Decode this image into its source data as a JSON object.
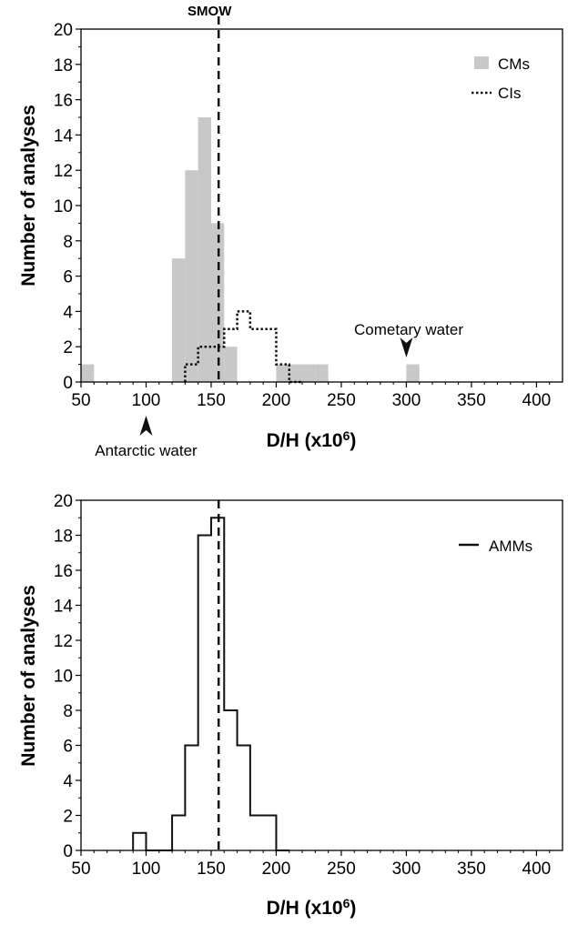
{
  "chart_data": [
    {
      "type": "bar",
      "ylabel": "Number of analyses",
      "xlabel_main": "D/H (x10",
      "xlabel_sup": "6",
      "xlabel_tail": ")",
      "xlim": [
        50,
        420
      ],
      "ylim": [
        0,
        20
      ],
      "x_ticks": [
        50,
        100,
        150,
        200,
        250,
        300,
        350,
        400
      ],
      "y_ticks": [
        0,
        2,
        4,
        6,
        8,
        10,
        12,
        14,
        16,
        18,
        20
      ],
      "bin_width": 10,
      "reference_line": {
        "label": "SMOW",
        "x": 155.76
      },
      "series": [
        {
          "name": "CMs",
          "style": "filled",
          "color": "#c8c8c8",
          "bins": [
            50,
            60,
            70,
            80,
            90,
            100,
            110,
            120,
            130,
            140,
            150,
            160,
            170,
            180,
            190,
            200,
            210,
            220,
            230,
            240,
            250,
            260,
            270,
            280,
            290,
            300,
            310
          ],
          "values": [
            1,
            0,
            0,
            0,
            0,
            0,
            0,
            7,
            12,
            15,
            9,
            2,
            0,
            0,
            0,
            1,
            1,
            1,
            1,
            0,
            0,
            0,
            0,
            0,
            0,
            1,
            0
          ]
        },
        {
          "name": "CIs",
          "style": "dotted",
          "color": "#111111",
          "bins": [
            130,
            140,
            150,
            160,
            170,
            180,
            190,
            200,
            210
          ],
          "values": [
            1,
            2,
            2,
            3,
            4,
            3,
            3,
            1,
            0
          ]
        }
      ],
      "annotations": [
        {
          "text": "Cometary water",
          "x": 300,
          "arrow": "down"
        },
        {
          "text": "Antarctic water",
          "x": 100,
          "arrow": "up"
        }
      ]
    },
    {
      "type": "bar",
      "ylabel": "Number of analyses",
      "xlabel_main": "D/H (x10",
      "xlabel_sup": "6",
      "xlabel_tail": ")",
      "xlim": [
        50,
        420
      ],
      "ylim": [
        0,
        20
      ],
      "x_ticks": [
        50,
        100,
        150,
        200,
        250,
        300,
        350,
        400
      ],
      "y_ticks": [
        0,
        2,
        4,
        6,
        8,
        10,
        12,
        14,
        16,
        18,
        20
      ],
      "bin_width": 10,
      "reference_line": {
        "label": "",
        "x": 155.76
      },
      "series": [
        {
          "name": "AMMs",
          "style": "step",
          "color": "#111111",
          "bins": [
            90,
            100,
            110,
            120,
            130,
            140,
            150,
            160,
            170,
            180,
            190,
            200
          ],
          "values": [
            1,
            0,
            0,
            2,
            6,
            18,
            19,
            8,
            6,
            2,
            2,
            0
          ]
        }
      ],
      "annotations": []
    }
  ]
}
